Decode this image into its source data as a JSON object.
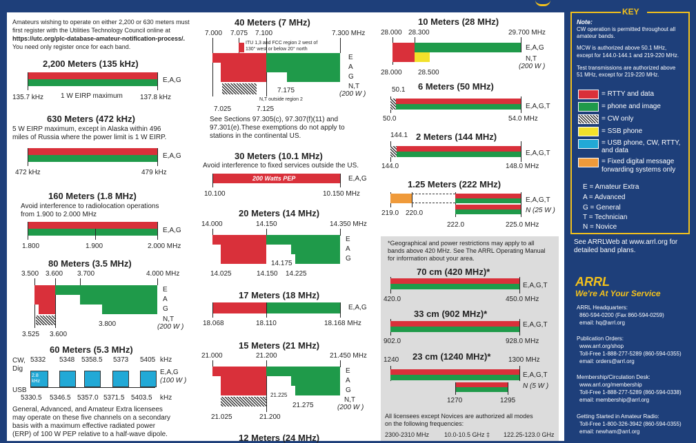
{
  "intro": {
    "line1": "Amateurs wishing to operate on either 2,200 or 630 meters must",
    "line2": "first register with the Utilities Technology Council online at",
    "url": "https://utc.org/plc-database-amateur-notification-process/.",
    "line4": "You need only register once for each band."
  },
  "b2200": {
    "title": "2,200 Meters (135 kHz)",
    "lo": "135.7 kHz",
    "hi": "137.8 kHz",
    "note": "1 W EIRP maximum",
    "cls": "E,A,G"
  },
  "b630": {
    "title": "630 Meters (472 kHz)",
    "note1": "5 W EIRP maximum, except in Alaska within 496",
    "note2": "miles of Russia where the power limit is 1 W EIRP.",
    "lo": "472 kHz",
    "hi": "479 kHz",
    "cls": "E,A,G"
  },
  "b160": {
    "title": "160 Meters (1.8 MHz)",
    "note1": "Avoid interference to radiolocation operations",
    "note2": "from 1.900 to 2.000 MHz",
    "f1": "1.800",
    "f2": "1.900",
    "f3": "2.000  MHz",
    "cls": "E,A,G"
  },
  "b80": {
    "title": "80 Meters (3.5 MHz)",
    "f1": "3.500",
    "f2": "3.600",
    "f3": "3.700",
    "f4": "4.000  MHz",
    "e": "E",
    "a": "A",
    "g": "G",
    "nt": "N,T",
    "pw": "(200 W )",
    "f5": "3.800",
    "f6": "3.525",
    "f7": "3.600"
  },
  "b60": {
    "title": "60 Meters (5.3 MHz)",
    "cw": "CW,",
    "dig": "Dig",
    "usb": "USB",
    "khz": "kHz",
    "bw": "2.8 kHz",
    "top": [
      "5332",
      "5348",
      "5358.5",
      "5373",
      "5405"
    ],
    "bot": [
      "5330.5",
      "5346.5",
      "5357.0",
      "5371.5",
      "5403.5"
    ],
    "cls": "E,A,G",
    "pw": "(100 W )",
    "note1": "General, Advanced, and Amateur Extra licensees",
    "note2": "may operate on these five channels on a secondary",
    "note3": "basis with a maximum effective radiated power",
    "note4": "(ERP) of 100 W PEP relative to a half-wave dipole."
  },
  "b40": {
    "title": "40 Meters (7 MHz)",
    "f1": "7.000",
    "f2": "7.075",
    "f3": "7.100",
    "f4": "7.300  MHz",
    "itu1": "ITU 1,3 and FCC region 2 west of",
    "itu2": "130° west or below 20° north",
    "e": "E",
    "a": "A",
    "g": "G",
    "nt": "N,T",
    "pw": "(200 W )",
    "f5": "7.175",
    "f6": "7.025",
    "f7": "7.125",
    "outside": "N,T outside region 2",
    "note1": "See Sections 97.305(c), 97.307(f)(11) and",
    "note2": "97.301(e).These exemptions do not apply to",
    "note3": "stations in the continental US."
  },
  "b30": {
    "title": "30 Meters (10.1 MHz)",
    "note": "Avoid interference to fixed services outside the US.",
    "inbar": "200 Watts PEP",
    "lo": "10.100",
    "hi": "10.150  MHz",
    "cls": "E,A,G"
  },
  "b20": {
    "title": "20 Meters (14 MHz)",
    "f1": "14.000",
    "f2": "14.150",
    "f3": "14.350  MHz",
    "e": "E",
    "a": "A",
    "g": "G",
    "f4": "14.175",
    "f5": "14.025",
    "f6": "14.150",
    "f7": "14.225"
  },
  "b17": {
    "title": "17 Meters (18 MHz)",
    "lo": "18.068",
    "mid": "18.110",
    "hi": "18.168  MHz",
    "cls": "E,A,G"
  },
  "b15": {
    "title": "15 Meters (21 MHz)",
    "f1": "21.000",
    "f2": "21.200",
    "f3": "21.450  MHz",
    "e": "E",
    "a": "A",
    "g": "G",
    "nt": "N,T",
    "pw": "(200 W )",
    "f4": "21.225",
    "f5": "21.275",
    "f6": "21.025",
    "f7": "21.200"
  },
  "b12": {
    "title": "12 Meters (24 MHz)"
  },
  "b10": {
    "title": "10 Meters (28 MHz)",
    "f1": "28.000",
    "f2": "28.300",
    "f3": "29.700  MHz",
    "cls": "E,A,G",
    "nt": "N,T",
    "pw": "(200 W )",
    "f4": "28.000",
    "f5": "28.500"
  },
  "b6": {
    "title": "6 Meters (50 MHz)",
    "top": "50.1",
    "lo": "50.0",
    "hi": "54.0  MHz",
    "cls": "E,A,G,T"
  },
  "b2": {
    "title": "2 Meters (144 MHz)",
    "top": "144.1",
    "lo": "144.0",
    "hi": "148.0  MHz",
    "cls": "E,A,G,T"
  },
  "b125": {
    "title": "1.25 Meters (222 MHz)",
    "f1": "219.0",
    "f2": "220.0",
    "f3": "222.0",
    "f4": "225.0  MHz",
    "cls": "E,A,G,T",
    "n": "N (25 W )"
  },
  "geo": {
    "l1": "*Geographical and power restrictions may apply to all",
    "l2": "bands above 420 MHz. See The ARRL Operating Manual",
    "l3": "for information about your area."
  },
  "b70": {
    "title": "70 cm (420 MHz)*",
    "lo": "420.0",
    "hi": "450.0  MHz",
    "cls": "E,A,G,T"
  },
  "b33": {
    "title": "33 cm (902 MHz)*",
    "lo": "902.0",
    "hi": "928.0  MHz",
    "cls": "E,A,G,T"
  },
  "b23": {
    "title": "23 cm (1240 MHz)*",
    "lo": "1240",
    "hi": "1300  MHz",
    "cls": "E,A,G,T",
    "n": "N (5 W )",
    "f3": "1270",
    "f4": "1295"
  },
  "allmodes": {
    "l1": "All licensees except Novices are authorized all modes",
    "l2": "on the following frequencies:",
    "c1": "2300-2310 MHz",
    "c2": "10.0-10.5 GHz ‡",
    "c3": "122.25-123.0 GHz"
  },
  "key": {
    "title": "KEY",
    "note": "Note:",
    "n1": "CW operation is permitted throughout all",
    "n2": "amateur bands.",
    "n3": "MCW is authorized above 50.1 MHz,",
    "n4": "except for 144.0-144.1 and 219-220 MHz.",
    "n5": "Test transmissions are authorized above",
    "n6": "51 MHz, except for 219-220 MHz.",
    "items": [
      "= RTTY and data",
      "= phone and image",
      "= CW only",
      "= SSB phone",
      "= USB phone, CW, RTTY,",
      "   and  data",
      "= Fixed digital message",
      "   forwarding systems only"
    ],
    "lic": [
      "E = Amateur Extra",
      "A = Advanced",
      "G = General",
      "T = Technician",
      "N = Novice"
    ],
    "see1": "See ARRLWeb at www.arrl.org for",
    "see2": "detailed band plans."
  },
  "arrl": {
    "name": "ARRL",
    "tag": "We're At Your Service",
    "hq": "ARRL Headquarters:",
    "hq1": "860-594-0200  (Fax 860-594-0259)",
    "hq2": "email:  hq@arrl.org",
    "po": "Publication Orders:",
    "po1": "www.arrl.org/shop",
    "po2": "Toll-Free 1-888-277-5289 (860-594-0355)",
    "po3": "email: orders@arrl.org",
    "mc": "Membership/Circulation Desk:",
    "mc1": "www.arrl.org/membership",
    "mc2": "Toll-Free 1-888-277-5289 (860-594-0338)",
    "mc3": "email: membership@arrl.org",
    "gs": "Getting Started in Amateur Radio:",
    "gs1": "Toll-Free 1-800-326-3942 (860-594-0355)",
    "gs2": "email: newham@arrl.org"
  },
  "colors": {
    "red": "#d9303a",
    "green": "#1f9a4a",
    "yellow": "#f2e12b",
    "cyan": "#22a9d6",
    "orange": "#ef9a3a",
    "navy": "#1e3f7a",
    "gold": "#f3c11c"
  }
}
